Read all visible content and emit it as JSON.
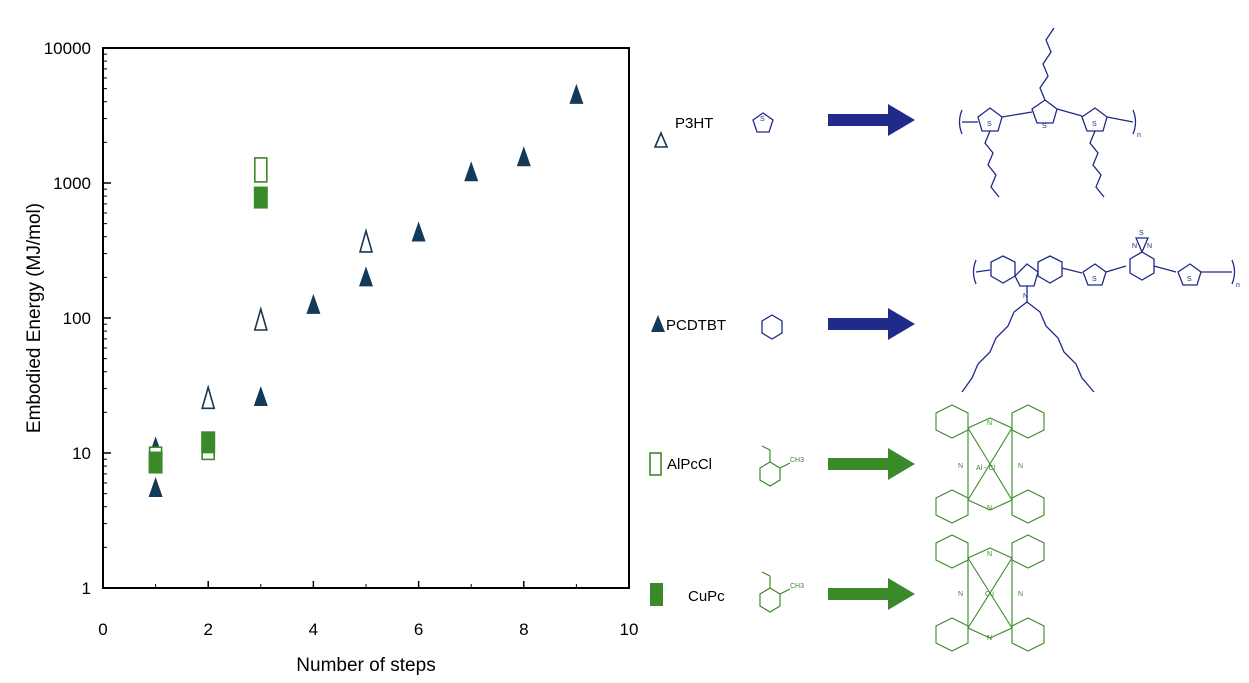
{
  "chart_data": {
    "type": "scatter",
    "xlabel": "Number of steps",
    "ylabel": "Embodied Energy (MJ/mol)",
    "xlim": [
      0,
      10
    ],
    "ylim": [
      1,
      10000
    ],
    "yscale": "log",
    "xticks": [
      "0",
      "2",
      "4",
      "6",
      "8",
      "10"
    ],
    "yticks": [
      "1",
      "10",
      "100",
      "1000",
      "10000"
    ],
    "legend_position": "right",
    "series": [
      {
        "name": "P3HT",
        "marker": "open-triangle",
        "color": "#1a3550",
        "points": [
          {
            "x": 2,
            "y": 25
          },
          {
            "x": 3,
            "y": 95
          },
          {
            "x": 5,
            "y": 360
          }
        ]
      },
      {
        "name": "PCDTBT",
        "marker": "filled-triangle",
        "color": "#143a5a",
        "points": [
          {
            "x": 1,
            "y": 5.5
          },
          {
            "x": 1,
            "y": 11
          },
          {
            "x": 3,
            "y": 26
          },
          {
            "x": 4,
            "y": 125
          },
          {
            "x": 5,
            "y": 200
          },
          {
            "x": 6,
            "y": 430
          },
          {
            "x": 7,
            "y": 1200
          },
          {
            "x": 8,
            "y": 1550
          },
          {
            "x": 9,
            "y": 4500
          }
        ]
      },
      {
        "name": "AlPcCl",
        "marker": "open-square",
        "color": "#3a8a2a",
        "points": [
          {
            "x": 1,
            "y": 9
          },
          {
            "x": 2,
            "y": 11
          },
          {
            "x": 3,
            "y": 1250
          }
        ]
      },
      {
        "name": "CuPc",
        "marker": "filled-square",
        "color": "#3a8a2a",
        "points": [
          {
            "x": 1,
            "y": 8.5
          },
          {
            "x": 2,
            "y": 12
          },
          {
            "x": 3,
            "y": 780
          }
        ]
      }
    ]
  },
  "colors": {
    "polymer": "#1f2a8a",
    "pc": "#3a8a2a",
    "dark_marker": "#143a5a"
  },
  "legend": {
    "p3ht": "P3HT",
    "pcdtbt": "PCDTBT",
    "alpccl": "AlPcCl",
    "cupc": "CuPc"
  },
  "atoms": {
    "S": "S",
    "N": "N",
    "Al_Cl": "Al - Cl",
    "Cu": "Cu",
    "CH3": "CH3",
    "n": "n"
  }
}
